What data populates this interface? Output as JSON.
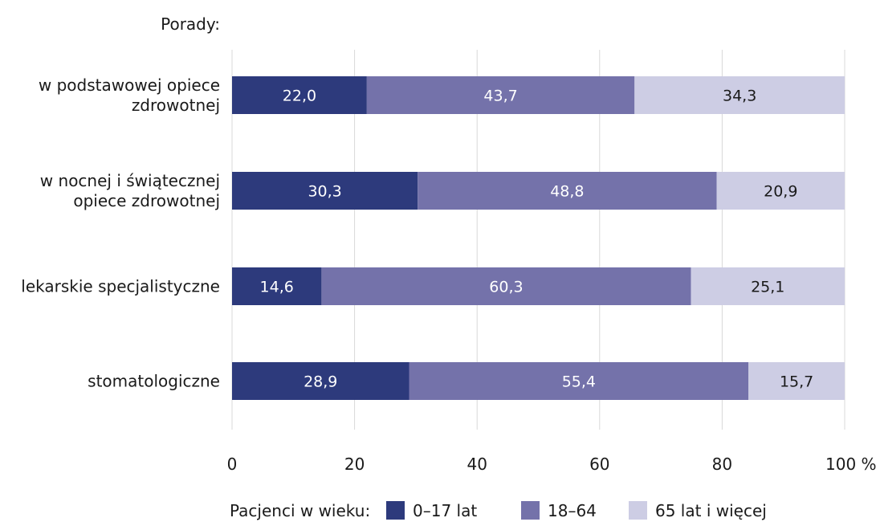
{
  "chart_data": {
    "type": "bar",
    "orientation": "horizontal",
    "stacked": true,
    "heading": "Porady:",
    "categories": [
      [
        "w podstawowej opiece",
        "zdrowotnej"
      ],
      [
        "w nocnej i świątecznej",
        "opiece zdrowotnej"
      ],
      [
        "lekarskie specjalistyczne"
      ],
      [
        "stomatologiczne"
      ]
    ],
    "series": [
      {
        "name": "0–17 lat",
        "color": "#2d3a7c",
        "label_color": "#ffffff",
        "values": [
          22.0,
          30.3,
          14.6,
          28.9
        ],
        "labels": [
          "22,0",
          "30,3",
          "14,6",
          "28,9"
        ]
      },
      {
        "name": "18–64",
        "color": "#7472aa",
        "label_color": "#ffffff",
        "values": [
          43.7,
          48.8,
          60.3,
          55.4
        ],
        "labels": [
          "43,7",
          "48,8",
          "60,3",
          "55,4"
        ]
      },
      {
        "name": "65 lat i więcej",
        "color": "#cdcde4",
        "label_color": "#1a1a1a",
        "values": [
          34.3,
          20.9,
          25.1,
          15.7
        ],
        "labels": [
          "34,3",
          "20,9",
          "25,1",
          "15,7"
        ]
      }
    ],
    "x_ticks": [
      0,
      20,
      40,
      60,
      80,
      100
    ],
    "x_tick_labels": [
      "0",
      "20",
      "40",
      "60",
      "80",
      "100 %"
    ],
    "xlim": [
      0,
      100
    ],
    "grid": true,
    "legend": {
      "title": "Pacjenci w wieku:",
      "placement": "bottom"
    }
  }
}
